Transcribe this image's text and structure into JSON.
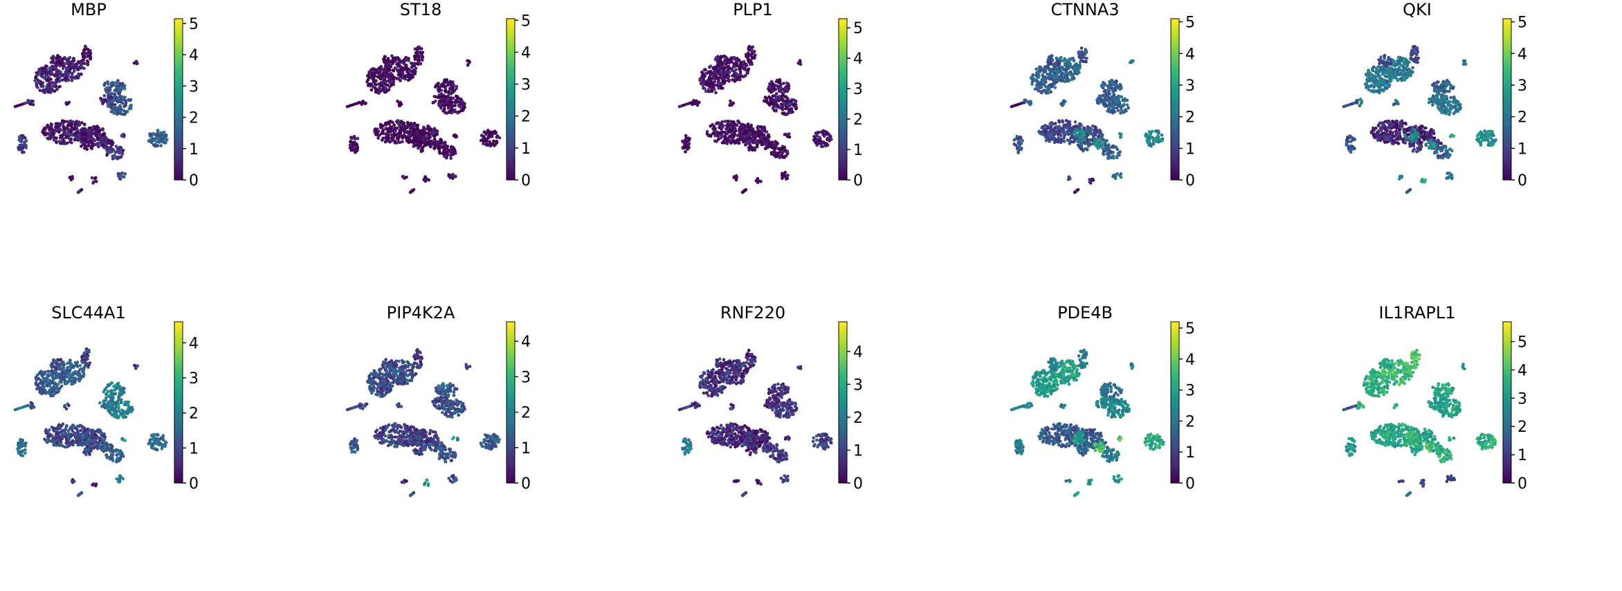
{
  "figure": {
    "type": "umap-feature-plot-grid",
    "colormap_stops": [
      "#440154",
      "#482878",
      "#3e4989",
      "#31688e",
      "#26828e",
      "#1f9e89",
      "#35b779",
      "#6ece58",
      "#b5de2b",
      "#fde725"
    ]
  },
  "chart_data": [
    {
      "type": "scatter",
      "title": "MBP",
      "vmin": 0,
      "vmax": 5.15,
      "ticks": [
        "0",
        "1",
        "2",
        "3",
        "4",
        "5"
      ],
      "cluster_levels": [
        0.55,
        0.6,
        0.15,
        0.2,
        1.4,
        0.65,
        1.5,
        0.35,
        0.25,
        0.1,
        0.3,
        0.75,
        0.35,
        0.6,
        1.5,
        0.4,
        0.3,
        0.2,
        0.9,
        0.2,
        0.25,
        1.2,
        0.3,
        0.4,
        0.9
      ]
    },
    {
      "type": "scatter",
      "title": "ST18",
      "vmin": 0,
      "vmax": 5.05,
      "ticks": [
        "0",
        "1",
        "2",
        "3",
        "4",
        "5"
      ],
      "cluster_levels": [
        0.15,
        0.1,
        0.05,
        0.1,
        0.05,
        0.05,
        0.2,
        0.05,
        0.05,
        0.05,
        0.05,
        0.05,
        0.1,
        0.05,
        0.05,
        0.15,
        0.05,
        0.05,
        0.05,
        0.1,
        0.05,
        0.1,
        0.05,
        0.1,
        0.1
      ]
    },
    {
      "type": "scatter",
      "title": "PLP1",
      "vmin": 0,
      "vmax": 5.3,
      "ticks": [
        "0",
        "1",
        "2",
        "3",
        "4",
        "5"
      ],
      "cluster_levels": [
        0.3,
        0.2,
        0.15,
        0.2,
        0.2,
        0.1,
        0.3,
        0.15,
        0.1,
        0.1,
        0.1,
        0.15,
        0.25,
        0.1,
        0.3,
        0.15,
        0.1,
        0.1,
        0.2,
        0.1,
        0.05,
        0.1,
        0.1,
        0.1,
        0.1
      ]
    },
    {
      "type": "scatter",
      "title": "CTNNA3",
      "vmin": 0,
      "vmax": 5.1,
      "ticks": [
        "0",
        "1",
        "2",
        "3",
        "4",
        "5"
      ],
      "cluster_levels": [
        1.6,
        1.7,
        1.3,
        1.2,
        1.5,
        1.6,
        1.5,
        1.1,
        1.2,
        1.3,
        1.4,
        1.5,
        2.3,
        2.5,
        2.4,
        1.9,
        1.6,
        1.7,
        1.3,
        1.1,
        0.3,
        1.9,
        0.3,
        0.4,
        1.9
      ]
    },
    {
      "type": "scatter",
      "title": "QKI",
      "vmin": 0,
      "vmax": 5.1,
      "ticks": [
        "0",
        "1",
        "2",
        "3",
        "4",
        "5"
      ],
      "cluster_levels": [
        2.0,
        2.1,
        1.2,
        1.1,
        1.6,
        1.9,
        2.0,
        0.6,
        0.5,
        0.7,
        1.0,
        1.5,
        2.4,
        2.5,
        2.6,
        2.0,
        1.8,
        2.0,
        1.4,
        2.4,
        3.2,
        2.1,
        1.3,
        1.6,
        3.6
      ]
    },
    {
      "type": "scatter",
      "title": "SLC44A1",
      "vmin": 0,
      "vmax": 4.6,
      "ticks": [
        "0",
        "1",
        "2",
        "3",
        "4"
      ],
      "cluster_levels": [
        1.3,
        1.4,
        0.9,
        0.8,
        2.1,
        1.8,
        2.0,
        1.0,
        0.9,
        1.1,
        1.2,
        1.5,
        1.2,
        1.3,
        1.6,
        1.1,
        1.0,
        0.9,
        1.6,
        0.4,
        0.6,
        1.9,
        1.7,
        1.5,
        2.2
      ]
    },
    {
      "type": "scatter",
      "title": "PIP4K2A",
      "vmin": 0,
      "vmax": 4.55,
      "ticks": [
        "0",
        "1",
        "2",
        "3",
        "4"
      ],
      "cluster_levels": [
        1.0,
        1.1,
        0.9,
        0.8,
        1.3,
        1.0,
        1.2,
        0.9,
        0.8,
        0.9,
        1.0,
        1.1,
        1.0,
        1.1,
        1.3,
        1.0,
        1.0,
        0.9,
        1.2,
        0.6,
        2.3,
        1.0,
        1.2,
        1.3,
        2.4
      ]
    },
    {
      "type": "scatter",
      "title": "RNF220",
      "vmin": 0,
      "vmax": 4.9,
      "ticks": [
        "0",
        "1",
        "2",
        "3",
        "4"
      ],
      "cluster_levels": [
        0.8,
        0.7,
        0.6,
        0.5,
        0.7,
        0.6,
        0.7,
        0.5,
        0.4,
        0.6,
        0.7,
        0.8,
        0.7,
        0.8,
        1.0,
        0.8,
        0.7,
        0.6,
        2.0,
        0.3,
        0.4,
        1.0,
        1.1,
        1.0,
        0.5
      ]
    },
    {
      "type": "scatter",
      "title": "PDE4B",
      "vmin": 0,
      "vmax": 5.2,
      "ticks": [
        "0",
        "1",
        "2",
        "3",
        "4",
        "5"
      ],
      "cluster_levels": [
        2.8,
        3.0,
        2.4,
        2.2,
        1.9,
        2.3,
        2.4,
        1.5,
        1.4,
        1.6,
        1.8,
        2.2,
        2.8,
        3.6,
        3.2,
        2.4,
        2.0,
        2.1,
        2.2,
        2.1,
        2.6,
        2.6,
        2.3,
        2.8,
        3.8
      ]
    },
    {
      "type": "scatter",
      "title": "IL1RAPL1",
      "vmin": 0,
      "vmax": 5.7,
      "ticks": [
        "0",
        "1",
        "2",
        "3",
        "4",
        "5"
      ],
      "cluster_levels": [
        3.6,
        3.8,
        3.4,
        4.2,
        3.3,
        3.0,
        3.3,
        3.4,
        3.2,
        3.3,
        3.4,
        3.6,
        3.8,
        4.0,
        3.6,
        3.6,
        3.4,
        3.2,
        3.0,
        0.9,
        1.2,
        1.0,
        1.6,
        2.4,
        3.4
      ]
    }
  ]
}
